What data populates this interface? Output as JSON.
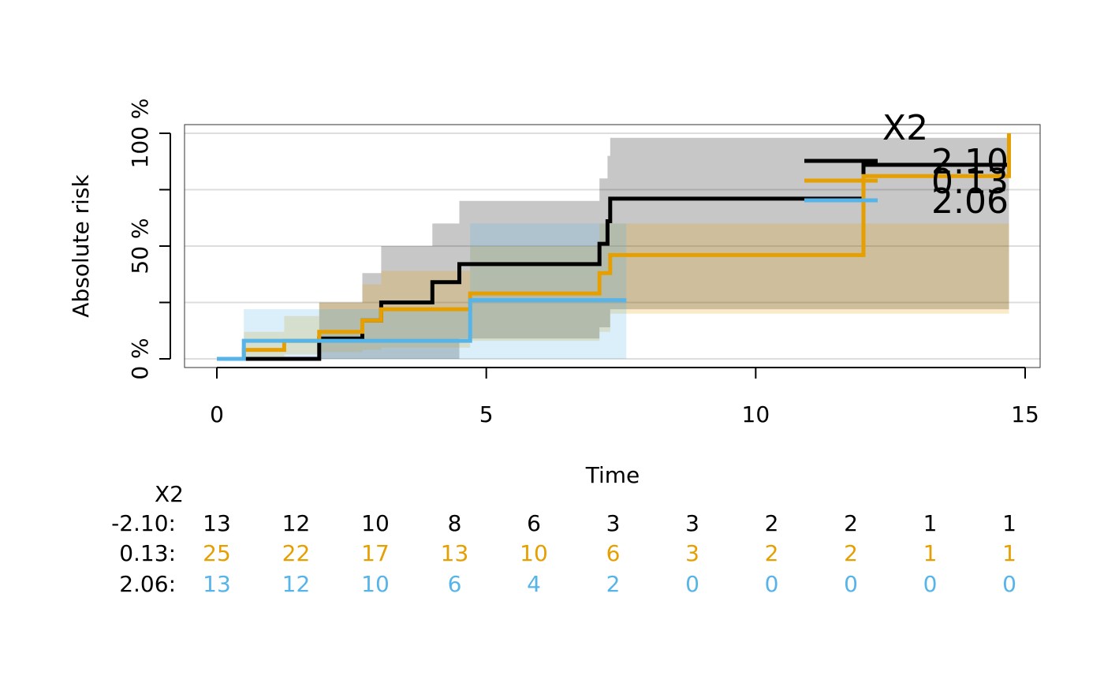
{
  "chart_data": {
    "type": "line",
    "title": "",
    "xlabel": "Time",
    "ylabel": "Absolute risk",
    "xlim": [
      -0.6,
      15.3
    ],
    "ylim": [
      -4,
      104
    ],
    "x_ticks": [
      0,
      5,
      10,
      15
    ],
    "x_tick_labels": [
      "0",
      "5",
      "10",
      "15"
    ],
    "y_ticks": [
      0,
      25,
      50,
      75,
      100
    ],
    "y_tick_labels": [
      "0 %",
      "",
      "50 %",
      "",
      "100 %"
    ],
    "grid": true,
    "step": true,
    "legend": {
      "title": "X2",
      "placement": "top-right",
      "entries": [
        "-2.10",
        "0.13",
        "2.06"
      ]
    },
    "series": [
      {
        "name": "-2.10",
        "color": "#000000",
        "x": [
          0,
          0.5,
          1.9,
          2.7,
          3.05,
          4.0,
          4.5,
          7.1,
          7.25,
          7.3,
          12.0,
          14.7
        ],
        "y": [
          0,
          0,
          9,
          17,
          25,
          34,
          42,
          51,
          61,
          71,
          86,
          86
        ],
        "ci_lower": [
          0,
          0,
          0,
          0,
          0,
          0,
          9,
          14,
          14,
          22,
          22,
          22
        ],
        "ci_upper": [
          0,
          0,
          25,
          38,
          50,
          60,
          70,
          80,
          90,
          98,
          98,
          98
        ]
      },
      {
        "name": "0.13",
        "color": "#E69F00",
        "x": [
          0,
          0.5,
          1.25,
          1.9,
          2.7,
          3.05,
          4.7,
          7.1,
          7.3,
          12.0,
          14.7
        ],
        "y": [
          0,
          4,
          8,
          12,
          17,
          22,
          29,
          38,
          46,
          81,
          100
        ],
        "ci_lower": [
          0,
          1,
          2,
          3,
          4,
          5,
          8,
          12,
          20,
          20,
          20
        ],
        "ci_upper": [
          0,
          12,
          19,
          25,
          33,
          39,
          50,
          60,
          60,
          60,
          60
        ]
      },
      {
        "name": "2.06",
        "color": "#56B4E9",
        "x": [
          0,
          0.5,
          4.7,
          7.6
        ],
        "y": [
          0,
          8,
          26,
          26
        ],
        "ci_lower": [
          0,
          0,
          0,
          0
        ],
        "ci_upper": [
          0,
          22,
          60,
          60
        ]
      }
    ],
    "risk_table": {
      "title": "X2",
      "rows": [
        {
          "label": "-2.10:",
          "color": "#000000",
          "values": [
            "13",
            "12",
            "10",
            "8",
            "6",
            "3",
            "3",
            "2",
            "2",
            "1",
            "1"
          ]
        },
        {
          "label": "0.13:",
          "color": "#E69F00",
          "values": [
            "25",
            "22",
            "17",
            "13",
            "10",
            "6",
            "3",
            "2",
            "2",
            "1",
            "1"
          ]
        },
        {
          "label": "2.06:",
          "color": "#56B4E9",
          "values": [
            "13",
            "12",
            "10",
            "6",
            "4",
            "2",
            "0",
            "0",
            "0",
            "0",
            "0"
          ]
        }
      ]
    }
  }
}
